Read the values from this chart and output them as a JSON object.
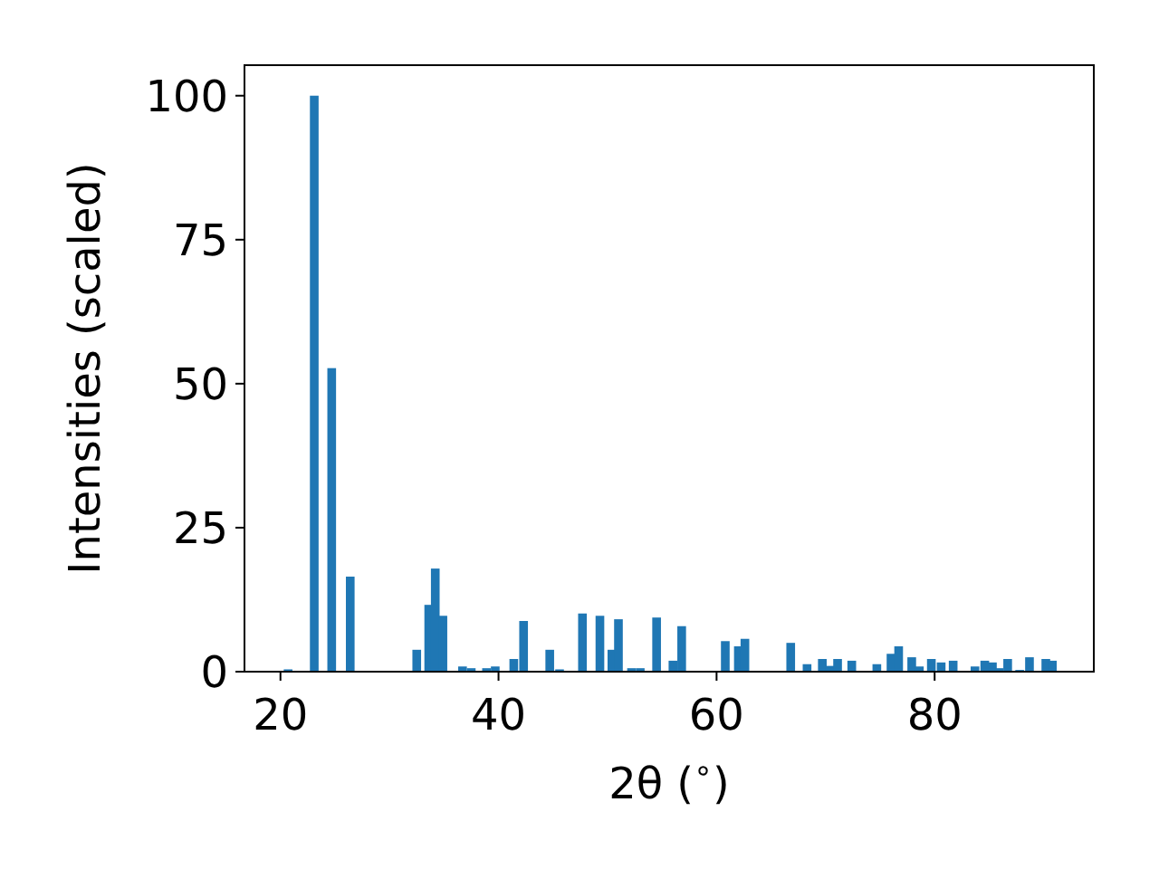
{
  "chart_data": {
    "type": "bar",
    "xlabel": "2θ ($^{∘}$)",
    "ylabel": "Intensities (scaled)",
    "x": [
      20.7,
      23.1,
      24.7,
      26.4,
      32.5,
      33.6,
      34.2,
      34.9,
      36.7,
      37.5,
      38.9,
      39.7,
      41.0,
      41.4,
      42.3,
      44.7,
      45.6,
      47.7,
      49.3,
      50.4,
      51.0,
      52.2,
      53.0,
      54.5,
      56.0,
      56.8,
      60.8,
      61.6,
      62.0,
      62.6,
      63.9,
      66.8,
      67.5,
      68.3,
      69.7,
      70.4,
      71.1,
      72.4,
      73.7,
      74.7,
      76.0,
      76.7,
      77.9,
      78.6,
      79.7,
      80.6,
      81.7,
      83.7,
      84.6,
      85.3,
      85.9,
      86.7,
      87.8,
      88.7,
      89.4,
      90.2,
      90.8
    ],
    "values": [
      0.4,
      100,
      52.7,
      16.5,
      3.8,
      11.6,
      17.9,
      9.7,
      0.9,
      0.6,
      0.6,
      0.9,
      null,
      2.2,
      8.8,
      3.8,
      0.4,
      10.1,
      9.7,
      3.8,
      9.1,
      0.6,
      0.6,
      9.4,
      1.9,
      7.9,
      5.3,
      null,
      4.4,
      5.7,
      null,
      5.0,
      null,
      1.3,
      2.2,
      1.0,
      2.2,
      1.9,
      null,
      1.3,
      3.1,
      4.4,
      2.5,
      0.9,
      2.2,
      1.6,
      1.9,
      0.9,
      1.9,
      1.6,
      0.6,
      2.2,
      0.3,
      2.5,
      null,
      2.2,
      1.9
    ],
    "color": "#1f77b4",
    "xlim": [
      16.7,
      94.6
    ],
    "ylim": [
      0,
      105.3
    ],
    "xticks": [
      20,
      40,
      60,
      80
    ],
    "yticks": [
      0,
      25,
      50,
      75,
      100
    ],
    "grid": false
  }
}
